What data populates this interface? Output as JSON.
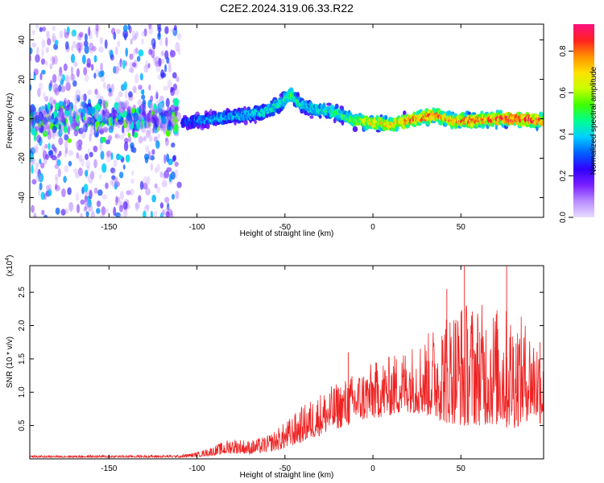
{
  "chart_data": [
    {
      "type": "heatmap",
      "title": "C2E2.2024.319.06.33.R22",
      "xlabel": "Height of straight line (km)",
      "ylabel": "Frequency (Hz)",
      "xlim": [
        -195,
        97
      ],
      "ylim": [
        -50,
        48
      ],
      "xticks": [
        -150,
        -100,
        -50,
        0,
        50
      ],
      "yticks": [
        -40,
        -20,
        0,
        20,
        40
      ],
      "colorbar": {
        "label": "Normalized spectral amplitude",
        "range": [
          0,
          0.93
        ],
        "ticks": [
          "0.0",
          "0.2",
          "0.4",
          "0.6",
          "0.8"
        ],
        "tick_values": [
          0.0,
          0.2,
          0.4,
          0.6,
          0.8
        ],
        "colors": [
          "#e8dcff",
          "#b98cff",
          "#7a1fff",
          "#3000ff",
          "#0060ff",
          "#00d0ff",
          "#00ff90",
          "#40ff00",
          "#c8ff00",
          "#ffe000",
          "#ff9000",
          "#ff2020",
          "#ff1080"
        ]
      },
      "ridge": [
        {
          "x": -108,
          "y": -2,
          "a": 0.3
        },
        {
          "x": -100,
          "y": -1,
          "a": 0.35
        },
        {
          "x": -90,
          "y": 0,
          "a": 0.4
        },
        {
          "x": -80,
          "y": 1,
          "a": 0.4
        },
        {
          "x": -70,
          "y": 2,
          "a": 0.42
        },
        {
          "x": -60,
          "y": 4,
          "a": 0.45
        },
        {
          "x": -52,
          "y": 8,
          "a": 0.5
        },
        {
          "x": -47,
          "y": 13,
          "a": 0.55
        },
        {
          "x": -44,
          "y": 10,
          "a": 0.5
        },
        {
          "x": -40,
          "y": 7,
          "a": 0.45
        },
        {
          "x": -35,
          "y": 5,
          "a": 0.45
        },
        {
          "x": -25,
          "y": 4,
          "a": 0.5
        },
        {
          "x": -15,
          "y": 1,
          "a": 0.55
        },
        {
          "x": -10,
          "y": -1,
          "a": 0.6
        },
        {
          "x": 0,
          "y": -2,
          "a": 0.7
        },
        {
          "x": 10,
          "y": -3,
          "a": 0.75
        },
        {
          "x": 20,
          "y": -1,
          "a": 0.8
        },
        {
          "x": 30,
          "y": 1,
          "a": 0.85
        },
        {
          "x": 35,
          "y": 2,
          "a": 0.8
        },
        {
          "x": 45,
          "y": -1,
          "a": 0.8
        },
        {
          "x": 55,
          "y": -1,
          "a": 0.85
        },
        {
          "x": 70,
          "y": 0,
          "a": 0.85
        },
        {
          "x": 80,
          "y": 0,
          "a": 0.9
        },
        {
          "x": 97,
          "y": -1,
          "a": 0.85
        }
      ],
      "noise_region": {
        "x": [
          -195,
          -110
        ],
        "y": [
          -50,
          48
        ],
        "a_max": 0.4
      }
    },
    {
      "type": "line",
      "xlabel": "Height of straight line (km)",
      "ylabel": "SNR (10 * v/v)",
      "yscale_note": "(x10",
      "yscale_exp": "4",
      "xlim": [
        -195,
        97
      ],
      "ylim": [
        0,
        2.9
      ],
      "xticks": [
        -150,
        -100,
        -50,
        0,
        50
      ],
      "yticks": [
        0.5,
        1.0,
        1.5,
        2.0,
        2.5
      ],
      "ytick_labels": [
        "0.5",
        "1.0",
        "1.5",
        "2.0",
        "2.5"
      ],
      "color": "#ee2222",
      "envelope": [
        {
          "x": -195,
          "lo": 0.02,
          "hi": 0.05
        },
        {
          "x": -110,
          "lo": 0.02,
          "hi": 0.06
        },
        {
          "x": -100,
          "lo": 0.03,
          "hi": 0.1
        },
        {
          "x": -90,
          "lo": 0.05,
          "hi": 0.2
        },
        {
          "x": -80,
          "lo": 0.08,
          "hi": 0.32
        },
        {
          "x": -70,
          "lo": 0.07,
          "hi": 0.28
        },
        {
          "x": -60,
          "lo": 0.1,
          "hi": 0.35
        },
        {
          "x": -50,
          "lo": 0.15,
          "hi": 0.55
        },
        {
          "x": -40,
          "lo": 0.25,
          "hi": 0.8
        },
        {
          "x": -30,
          "lo": 0.35,
          "hi": 1.0
        },
        {
          "x": -20,
          "lo": 0.45,
          "hi": 1.15
        },
        {
          "x": -10,
          "lo": 0.55,
          "hi": 1.3
        },
        {
          "x": 0,
          "lo": 0.6,
          "hi": 1.45
        },
        {
          "x": 10,
          "lo": 0.65,
          "hi": 1.55
        },
        {
          "x": 20,
          "lo": 0.7,
          "hi": 1.7
        },
        {
          "x": 30,
          "lo": 0.65,
          "hi": 1.85
        },
        {
          "x": 40,
          "lo": 0.55,
          "hi": 2.2
        },
        {
          "x": 50,
          "lo": 0.5,
          "hi": 2.4
        },
        {
          "x": 60,
          "lo": 0.5,
          "hi": 2.35
        },
        {
          "x": 70,
          "lo": 0.5,
          "hi": 2.3
        },
        {
          "x": 80,
          "lo": 0.45,
          "hi": 2.25
        },
        {
          "x": 90,
          "lo": 0.6,
          "hi": 2.0
        },
        {
          "x": 97,
          "lo": 0.5,
          "hi": 1.8
        }
      ],
      "spikes": [
        {
          "x": -14,
          "y": 1.6
        },
        {
          "x": 42,
          "y": 2.55
        },
        {
          "x": 52,
          "y": 2.9
        },
        {
          "x": 76,
          "y": 2.9
        },
        {
          "x": 95,
          "y": 1.75
        }
      ]
    }
  ]
}
